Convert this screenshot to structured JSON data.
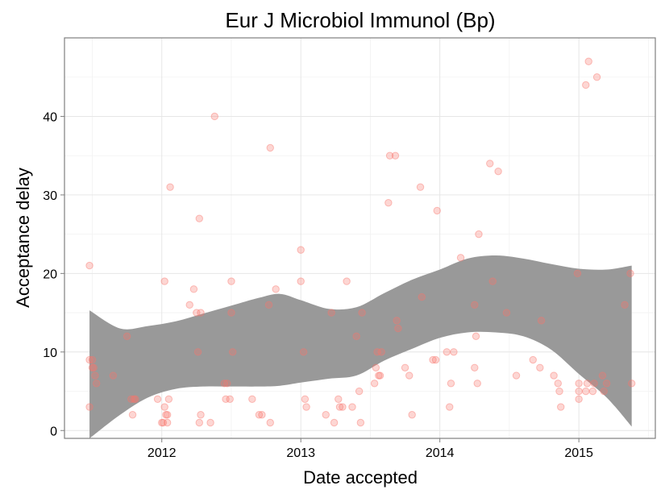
{
  "chart_data": {
    "type": "scatter",
    "title": "Eur J Microbiol Immunol (Bp)",
    "xlabel": "Date accepted",
    "ylabel": "Acceptance delay",
    "x_ticks": [
      "2012",
      "2013",
      "2014",
      "2015"
    ],
    "y_ticks": [
      "0",
      "10",
      "20",
      "30",
      "40"
    ],
    "xlim": [
      2011.3,
      2015.55
    ],
    "ylim": [
      -1,
      50
    ],
    "grid": true,
    "legend": "none",
    "point_color": "#f8766d",
    "band_color": "#999999",
    "points": [
      [
        2011.48,
        21
      ],
      [
        2011.48,
        9
      ],
      [
        2011.48,
        3
      ],
      [
        2011.5,
        9
      ],
      [
        2011.5,
        8
      ],
      [
        2011.51,
        8
      ],
      [
        2011.52,
        7
      ],
      [
        2011.53,
        6
      ],
      [
        2011.65,
        7
      ],
      [
        2011.75,
        12
      ],
      [
        2011.78,
        4
      ],
      [
        2011.8,
        4
      ],
      [
        2011.81,
        4
      ],
      [
        2011.79,
        2
      ],
      [
        2011.97,
        4
      ],
      [
        2012.0,
        1
      ],
      [
        2012.01,
        1
      ],
      [
        2012.02,
        3
      ],
      [
        2012.02,
        19
      ],
      [
        2012.03,
        2
      ],
      [
        2012.04,
        2
      ],
      [
        2012.04,
        1
      ],
      [
        2012.05,
        4
      ],
      [
        2012.06,
        31
      ],
      [
        2012.2,
        16
      ],
      [
        2012.23,
        18
      ],
      [
        2012.25,
        15
      ],
      [
        2012.26,
        10
      ],
      [
        2012.27,
        27
      ],
      [
        2012.28,
        15
      ],
      [
        2012.27,
        1
      ],
      [
        2012.28,
        2
      ],
      [
        2012.35,
        1
      ],
      [
        2012.38,
        40
      ],
      [
        2012.45,
        6
      ],
      [
        2012.46,
        4
      ],
      [
        2012.47,
        6
      ],
      [
        2012.49,
        4
      ],
      [
        2012.5,
        15
      ],
      [
        2012.5,
        19
      ],
      [
        2012.51,
        10
      ],
      [
        2012.65,
        4
      ],
      [
        2012.7,
        2
      ],
      [
        2012.72,
        2
      ],
      [
        2012.77,
        16
      ],
      [
        2012.78,
        36
      ],
      [
        2012.78,
        1
      ],
      [
        2012.82,
        18
      ],
      [
        2013.0,
        23
      ],
      [
        2013.0,
        19
      ],
      [
        2013.02,
        10
      ],
      [
        2013.03,
        4
      ],
      [
        2013.04,
        3
      ],
      [
        2013.18,
        2
      ],
      [
        2013.22,
        15
      ],
      [
        2013.24,
        1
      ],
      [
        2013.27,
        4
      ],
      [
        2013.28,
        3
      ],
      [
        2013.3,
        3
      ],
      [
        2013.33,
        19
      ],
      [
        2013.37,
        3
      ],
      [
        2013.4,
        12
      ],
      [
        2013.42,
        5
      ],
      [
        2013.43,
        1
      ],
      [
        2013.44,
        15
      ],
      [
        2013.53,
        6
      ],
      [
        2013.54,
        8
      ],
      [
        2013.55,
        10
      ],
      [
        2013.56,
        7
      ],
      [
        2013.57,
        7
      ],
      [
        2013.58,
        10
      ],
      [
        2013.63,
        29
      ],
      [
        2013.64,
        35
      ],
      [
        2013.68,
        35
      ],
      [
        2013.69,
        14
      ],
      [
        2013.7,
        13
      ],
      [
        2013.75,
        8
      ],
      [
        2013.78,
        7
      ],
      [
        2013.8,
        2
      ],
      [
        2013.86,
        31
      ],
      [
        2013.87,
        17
      ],
      [
        2013.95,
        9
      ],
      [
        2013.97,
        9
      ],
      [
        2013.98,
        28
      ],
      [
        2014.05,
        10
      ],
      [
        2014.07,
        3
      ],
      [
        2014.08,
        6
      ],
      [
        2014.1,
        10
      ],
      [
        2014.15,
        22
      ],
      [
        2014.25,
        16
      ],
      [
        2014.25,
        8
      ],
      [
        2014.26,
        12
      ],
      [
        2014.27,
        6
      ],
      [
        2014.28,
        25
      ],
      [
        2014.36,
        34
      ],
      [
        2014.38,
        19
      ],
      [
        2014.42,
        33
      ],
      [
        2014.48,
        15
      ],
      [
        2014.55,
        7
      ],
      [
        2014.67,
        9
      ],
      [
        2014.72,
        8
      ],
      [
        2014.73,
        14
      ],
      [
        2014.82,
        7
      ],
      [
        2014.85,
        6
      ],
      [
        2014.86,
        5
      ],
      [
        2014.87,
        3
      ],
      [
        2014.99,
        20
      ],
      [
        2015.0,
        6
      ],
      [
        2015.0,
        5
      ],
      [
        2015.0,
        4
      ],
      [
        2015.05,
        5
      ],
      [
        2015.06,
        6
      ],
      [
        2015.05,
        44
      ],
      [
        2015.07,
        47
      ],
      [
        2015.1,
        5
      ],
      [
        2015.11,
        6
      ],
      [
        2015.13,
        45
      ],
      [
        2015.17,
        7
      ],
      [
        2015.18,
        5
      ],
      [
        2015.2,
        6
      ],
      [
        2015.33,
        16
      ],
      [
        2015.37,
        20
      ],
      [
        2015.38,
        6
      ]
    ],
    "smooth_band": [
      [
        2011.48,
        -1,
        15.3
      ],
      [
        2011.7,
        2,
        13.0
      ],
      [
        2011.9,
        4.2,
        13.3
      ],
      [
        2012.1,
        5.3,
        13.9
      ],
      [
        2012.3,
        5.6,
        14.9
      ],
      [
        2012.5,
        5.6,
        15.9
      ],
      [
        2012.7,
        5.6,
        16.9
      ],
      [
        2012.85,
        5.7,
        17.4
      ],
      [
        2013.0,
        6.1,
        16.6
      ],
      [
        2013.2,
        6.6,
        15.5
      ],
      [
        2013.4,
        7.0,
        15.7
      ],
      [
        2013.6,
        8.9,
        17.5
      ],
      [
        2013.8,
        10.4,
        19.2
      ],
      [
        2014.0,
        11.8,
        20.5
      ],
      [
        2014.2,
        12.5,
        21.9
      ],
      [
        2014.4,
        12.5,
        22.3
      ],
      [
        2014.6,
        12.0,
        21.9
      ],
      [
        2014.8,
        10.3,
        21.2
      ],
      [
        2015.0,
        7.2,
        20.6
      ],
      [
        2015.2,
        4.2,
        20.5
      ],
      [
        2015.38,
        0.5,
        21.0
      ]
    ]
  }
}
